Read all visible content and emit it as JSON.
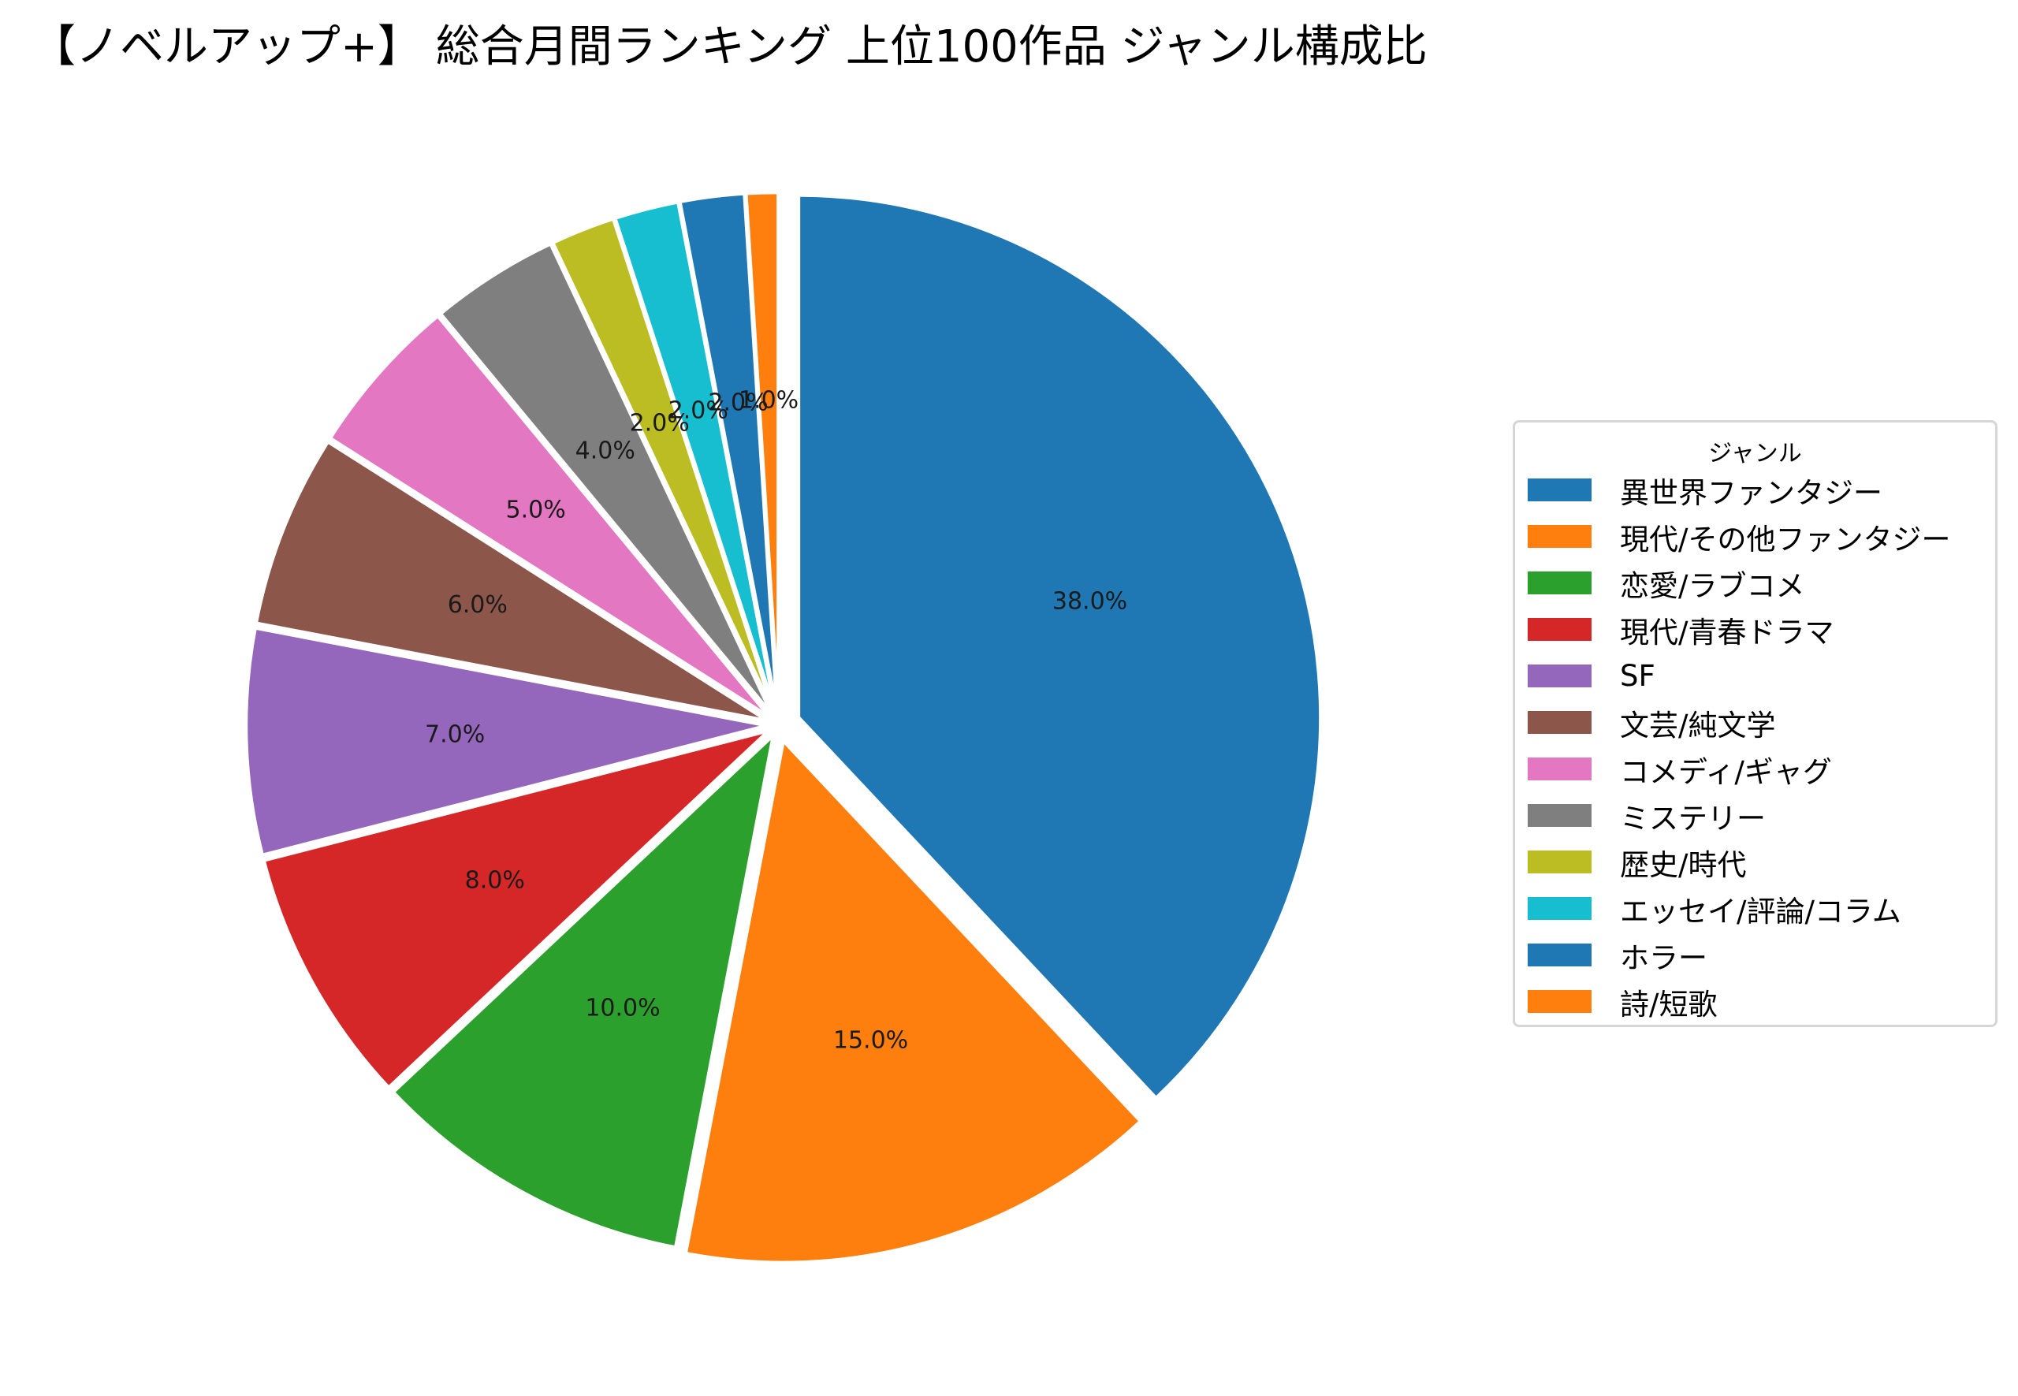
{
  "title": "【ノベルアップ+】 総合月間ランキング 上位100作品 ジャンル構成比",
  "legend": {
    "title": "ジャンル",
    "items": [
      {
        "label": "異世界ファンタジー",
        "color": "#1f77b4"
      },
      {
        "label": "現代/その他ファンタジー",
        "color": "#ff7f0e"
      },
      {
        "label": "恋愛/ラブコメ",
        "color": "#2ca02c"
      },
      {
        "label": "現代/青春ドラマ",
        "color": "#d62728"
      },
      {
        "label": "SF",
        "color": "#9467bd"
      },
      {
        "label": "文芸/純文学",
        "color": "#8c564b"
      },
      {
        "label": "コメディ/ギャグ",
        "color": "#e377c2"
      },
      {
        "label": "ミステリー",
        "color": "#7f7f7f"
      },
      {
        "label": "歴史/時代",
        "color": "#bcbd22"
      },
      {
        "label": "エッセイ/評論/コラム",
        "color": "#17becf"
      },
      {
        "label": "ホラー",
        "color": "#1f77b4"
      },
      {
        "label": "詩/短歌",
        "color": "#ff7f0e"
      }
    ]
  },
  "chart_data": {
    "type": "pie",
    "title": "【ノベルアップ+】 総合月間ランキング 上位100作品 ジャンル構成比",
    "categories": [
      "異世界ファンタジー",
      "現代/その他ファンタジー",
      "恋愛/ラブコメ",
      "現代/青春ドラマ",
      "SF",
      "文芸/純文学",
      "コメディ/ギャグ",
      "ミステリー",
      "歴史/時代",
      "エッセイ/評論/コラム",
      "ホラー",
      "詩/短歌"
    ],
    "values": [
      38,
      15,
      10,
      8,
      7,
      6,
      5,
      4,
      2,
      2,
      2,
      1
    ],
    "labels": [
      "38.0%",
      "15.0%",
      "10.0%",
      "8.0%",
      "7.0%",
      "6.0%",
      "5.0%",
      "4.0%",
      "2.0%",
      "2.0%",
      "2.0%",
      "1.0%"
    ],
    "colors": [
      "#1f77b4",
      "#ff7f0e",
      "#2ca02c",
      "#d62728",
      "#9467bd",
      "#8c564b",
      "#e377c2",
      "#7f7f7f",
      "#bcbd22",
      "#17becf",
      "#1f77b4",
      "#ff7f0e"
    ],
    "explode": [
      0.04,
      0.03,
      0.02,
      0.02,
      0.02,
      0.02,
      0.02,
      0.02,
      0.02,
      0.02,
      0.02,
      0.02
    ],
    "startangle": 90,
    "counterclock": false,
    "legend_title": "ジャンル",
    "legend_position": "right"
  }
}
